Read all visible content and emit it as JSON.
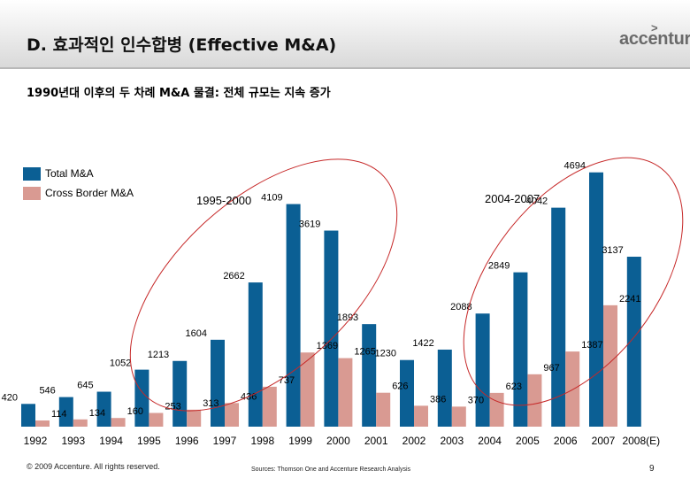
{
  "slide": {
    "title": "D. 효과적인 인수합병 (Effective M&A)",
    "logo": "accenture",
    "logo_mark": ">",
    "subtitle": "1990년대 이후의 두 차례 M&A 물결: 전체 규모는 지속 증가",
    "footer_copyright": "© 2009 Accenture. All rights reserved.",
    "footer_sources": "Sources: Thomson One and Accenture Research Analysis",
    "page_number": "9"
  },
  "chart_data": {
    "type": "bar",
    "title": "",
    "xlabel": "",
    "ylabel": "",
    "ylim": [
      0,
      5000
    ],
    "grid": false,
    "legend_position": "top-left",
    "categories": [
      "1992",
      "1993",
      "1994",
      "1995",
      "1996",
      "1997",
      "1998",
      "1999",
      "2000",
      "2001",
      "2002",
      "2003",
      "2004",
      "2005",
      "2006",
      "2007",
      "2008(E)"
    ],
    "series": [
      {
        "name": "Total M&A",
        "color": "#0b5f94",
        "values": [
          420,
          546,
          645,
          1052,
          1213,
          1604,
          2662,
          4109,
          3619,
          1893,
          1230,
          1422,
          2088,
          2849,
          4042,
          4694,
          3137
        ]
      },
      {
        "name": "Cross Border M&A",
        "color": "#d99a92",
        "values": [
          114,
          134,
          160,
          253,
          313,
          436,
          737,
          1369,
          1265,
          626,
          386,
          370,
          623,
          967,
          1387,
          2241,
          null
        ]
      }
    ],
    "annotations": [
      {
        "label": "1995-2000",
        "period": [
          "1995",
          "2000"
        ]
      },
      {
        "label": "2004-2007",
        "period": [
          "2004",
          "2007"
        ]
      }
    ]
  }
}
